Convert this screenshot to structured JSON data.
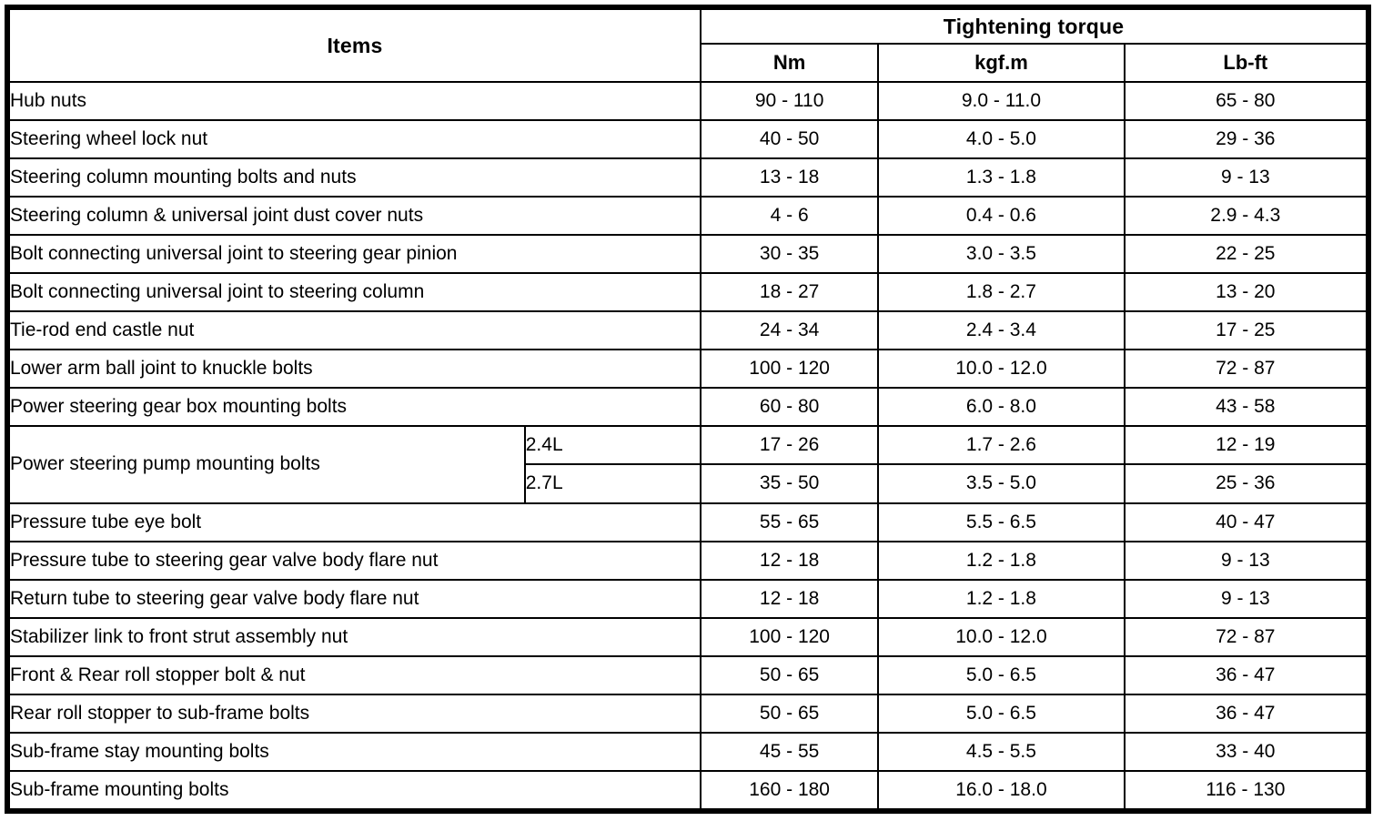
{
  "colors": {
    "border": "#000000",
    "background": "#ffffff",
    "text": "#000000"
  },
  "table": {
    "header": {
      "items_label": "Items",
      "torque_label": "Tightening torque",
      "units": [
        "Nm",
        "kgf.m",
        "Lb-ft"
      ]
    },
    "rows": [
      {
        "item": "Hub nuts",
        "nm": "90 - 110",
        "kgfm": "9.0 - 11.0",
        "lbft": "65 - 80"
      },
      {
        "item": "Steering wheel lock nut",
        "nm": "40 - 50",
        "kgfm": "4.0 - 5.0",
        "lbft": "29 - 36"
      },
      {
        "item": "Steering column mounting bolts and nuts",
        "nm": "13 - 18",
        "kgfm": "1.3 - 1.8",
        "lbft": "9 - 13"
      },
      {
        "item": "Steering column & universal joint dust cover nuts",
        "nm": "4 - 6",
        "kgfm": "0.4 - 0.6",
        "lbft": "2.9 - 4.3"
      },
      {
        "item": "Bolt connecting universal joint to steering gear pinion",
        "nm": "30 - 35",
        "kgfm": "3.0 - 3.5",
        "lbft": "22 - 25"
      },
      {
        "item": "Bolt connecting universal joint to steering column",
        "nm": "18 - 27",
        "kgfm": "1.8 - 2.7",
        "lbft": "13 - 20"
      },
      {
        "item": "Tie-rod end castle nut",
        "nm": "24 - 34",
        "kgfm": "2.4 - 3.4",
        "lbft": "17 - 25"
      },
      {
        "item": "Lower arm ball joint to knuckle bolts",
        "nm": "100 - 120",
        "kgfm": "10.0 - 12.0",
        "lbft": "72 - 87"
      },
      {
        "item": "Power steering gear box mounting bolts",
        "nm": "60 - 80",
        "kgfm": "6.0 - 8.0",
        "lbft": "43 - 58"
      },
      {
        "item": "Power steering pump mounting bolts",
        "variants": [
          {
            "engine": "2.4L",
            "nm": "17 - 26",
            "kgfm": "1.7 - 2.6",
            "lbft": "12 - 19"
          },
          {
            "engine": "2.7L",
            "nm": "35 - 50",
            "kgfm": "3.5 - 5.0",
            "lbft": "25 - 36"
          }
        ]
      },
      {
        "item": "Pressure tube eye bolt",
        "nm": "55 - 65",
        "kgfm": "5.5 - 6.5",
        "lbft": "40 - 47"
      },
      {
        "item": "Pressure tube to steering gear valve body flare nut",
        "nm": "12 - 18",
        "kgfm": "1.2 - 1.8",
        "lbft": "9 - 13"
      },
      {
        "item": "Return tube to steering gear valve body flare nut",
        "nm": "12 - 18",
        "kgfm": "1.2 - 1.8",
        "lbft": "9 - 13"
      },
      {
        "item": "Stabilizer link to front strut assembly nut",
        "nm": "100 - 120",
        "kgfm": "10.0 - 12.0",
        "lbft": "72 - 87"
      },
      {
        "item": "Front & Rear roll stopper bolt & nut",
        "nm": "50 - 65",
        "kgfm": "5.0 - 6.5",
        "lbft": "36 - 47"
      },
      {
        "item": "Rear roll stopper to sub-frame bolts",
        "nm": "50 - 65",
        "kgfm": "5.0 - 6.5",
        "lbft": "36 - 47"
      },
      {
        "item": "Sub-frame stay mounting bolts",
        "nm": "45 - 55",
        "kgfm": "4.5 - 5.5",
        "lbft": "33 - 40"
      },
      {
        "item": "Sub-frame mounting bolts",
        "nm": "160 - 180",
        "kgfm": "16.0 - 18.0",
        "lbft": "116 - 130"
      }
    ]
  }
}
